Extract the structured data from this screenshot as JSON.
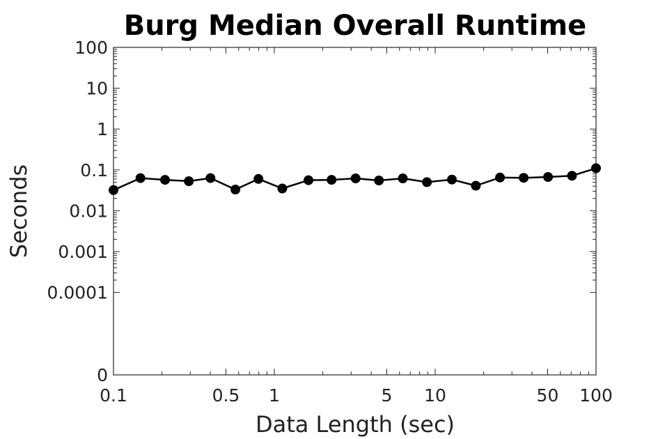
{
  "chart_data": {
    "type": "line",
    "title": "Burg Median Overall Runtime",
    "xlabel": "Data Length (sec)",
    "ylabel": "Seconds",
    "x_scale": "log",
    "xlim": [
      0.1,
      100
    ],
    "x_ticks": [
      {
        "value": 0.1,
        "label": "0.1"
      },
      {
        "value": 0.5,
        "label": "0.5"
      },
      {
        "value": 1,
        "label": "1"
      },
      {
        "value": 5,
        "label": "5"
      },
      {
        "value": 10,
        "label": "10"
      },
      {
        "value": 50,
        "label": "50"
      },
      {
        "value": 100,
        "label": "100"
      }
    ],
    "y_scale": "log",
    "ylim": [
      0,
      100
    ],
    "y_ticks": [
      {
        "value": 100,
        "label": "100"
      },
      {
        "value": 10,
        "label": "10"
      },
      {
        "value": 1,
        "label": "1"
      },
      {
        "value": 0.1,
        "label": "0.1"
      },
      {
        "value": 0.01,
        "label": "0.01"
      },
      {
        "value": 0.001,
        "label": "0.001"
      },
      {
        "value": 0.0001,
        "label": "0.0001"
      },
      {
        "value": 0,
        "label": "0"
      }
    ],
    "grid": false,
    "series": [
      {
        "color": "#000000",
        "marker": "circle",
        "points": [
          {
            "x": 0.1,
            "y": 0.032
          },
          {
            "x": 0.147,
            "y": 0.063
          },
          {
            "x": 0.209,
            "y": 0.057
          },
          {
            "x": 0.294,
            "y": 0.053
          },
          {
            "x": 0.401,
            "y": 0.063
          },
          {
            "x": 0.573,
            "y": 0.033
          },
          {
            "x": 0.797,
            "y": 0.06
          },
          {
            "x": 1.12,
            "y": 0.035
          },
          {
            "x": 1.63,
            "y": 0.056
          },
          {
            "x": 2.27,
            "y": 0.057
          },
          {
            "x": 3.2,
            "y": 0.062
          },
          {
            "x": 4.47,
            "y": 0.055
          },
          {
            "x": 6.29,
            "y": 0.062
          },
          {
            "x": 8.88,
            "y": 0.05
          },
          {
            "x": 12.7,
            "y": 0.058
          },
          {
            "x": 17.9,
            "y": 0.041
          },
          {
            "x": 25.3,
            "y": 0.065
          },
          {
            "x": 35.5,
            "y": 0.064
          },
          {
            "x": 50.3,
            "y": 0.067
          },
          {
            "x": 70.9,
            "y": 0.072
          },
          {
            "x": 100,
            "y": 0.11
          }
        ]
      }
    ]
  }
}
